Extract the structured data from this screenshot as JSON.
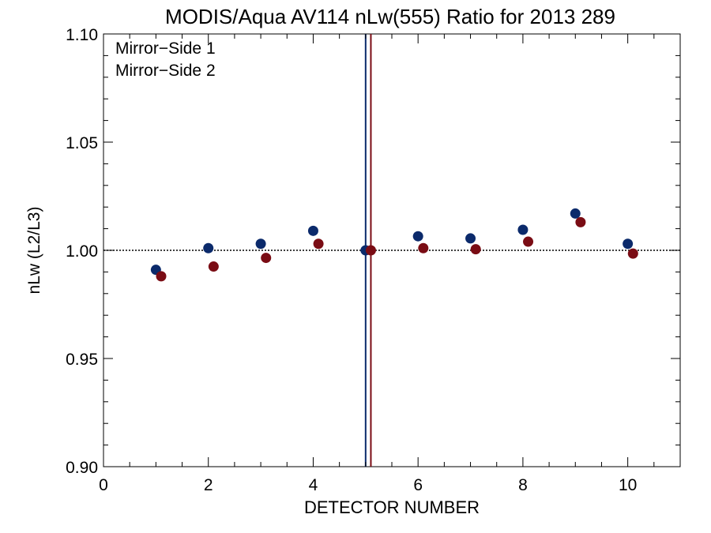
{
  "chart_data": {
    "type": "scatter",
    "title": "MODIS/Aqua AV114 nLw(555) Ratio for 2013 289",
    "xlabel": "DETECTOR NUMBER",
    "ylabel": "nLw (L2/L3)",
    "xlim": [
      0,
      11
    ],
    "ylim": [
      0.9,
      1.1
    ],
    "xticks": [
      0,
      2,
      4,
      6,
      8,
      10
    ],
    "xtick_labels": [
      "0",
      "2",
      "4",
      "6",
      "8",
      "10"
    ],
    "yticks": [
      0.9,
      0.95,
      1.0,
      1.05,
      1.1
    ],
    "ytick_labels": [
      "0.90",
      "0.95",
      "1.00",
      "1.05",
      "1.10"
    ],
    "reference_line_y": 1.0,
    "vertical_lines": [
      {
        "x": 5.0,
        "color": "#0b2a6b"
      },
      {
        "x": 5.1,
        "color": "#7a0c14"
      }
    ],
    "legend_position": "top-left",
    "series": [
      {
        "name": "Mirror−Side 1",
        "color": "#0b2a6b",
        "x": [
          1,
          2,
          3,
          4,
          5,
          6,
          7,
          8,
          9,
          10
        ],
        "y": [
          0.991,
          1.001,
          1.003,
          1.009,
          1.0,
          1.0065,
          1.0055,
          1.0095,
          1.017,
          1.003
        ]
      },
      {
        "name": "Mirror−Side 2",
        "color": "#7a0c14",
        "x": [
          1.1,
          2.1,
          3.1,
          4.1,
          5.1,
          6.1,
          7.1,
          8.1,
          9.1,
          10.1
        ],
        "y": [
          0.988,
          0.9925,
          0.9965,
          1.003,
          1.0,
          1.001,
          1.0005,
          1.004,
          1.013,
          0.9985
        ]
      }
    ]
  }
}
